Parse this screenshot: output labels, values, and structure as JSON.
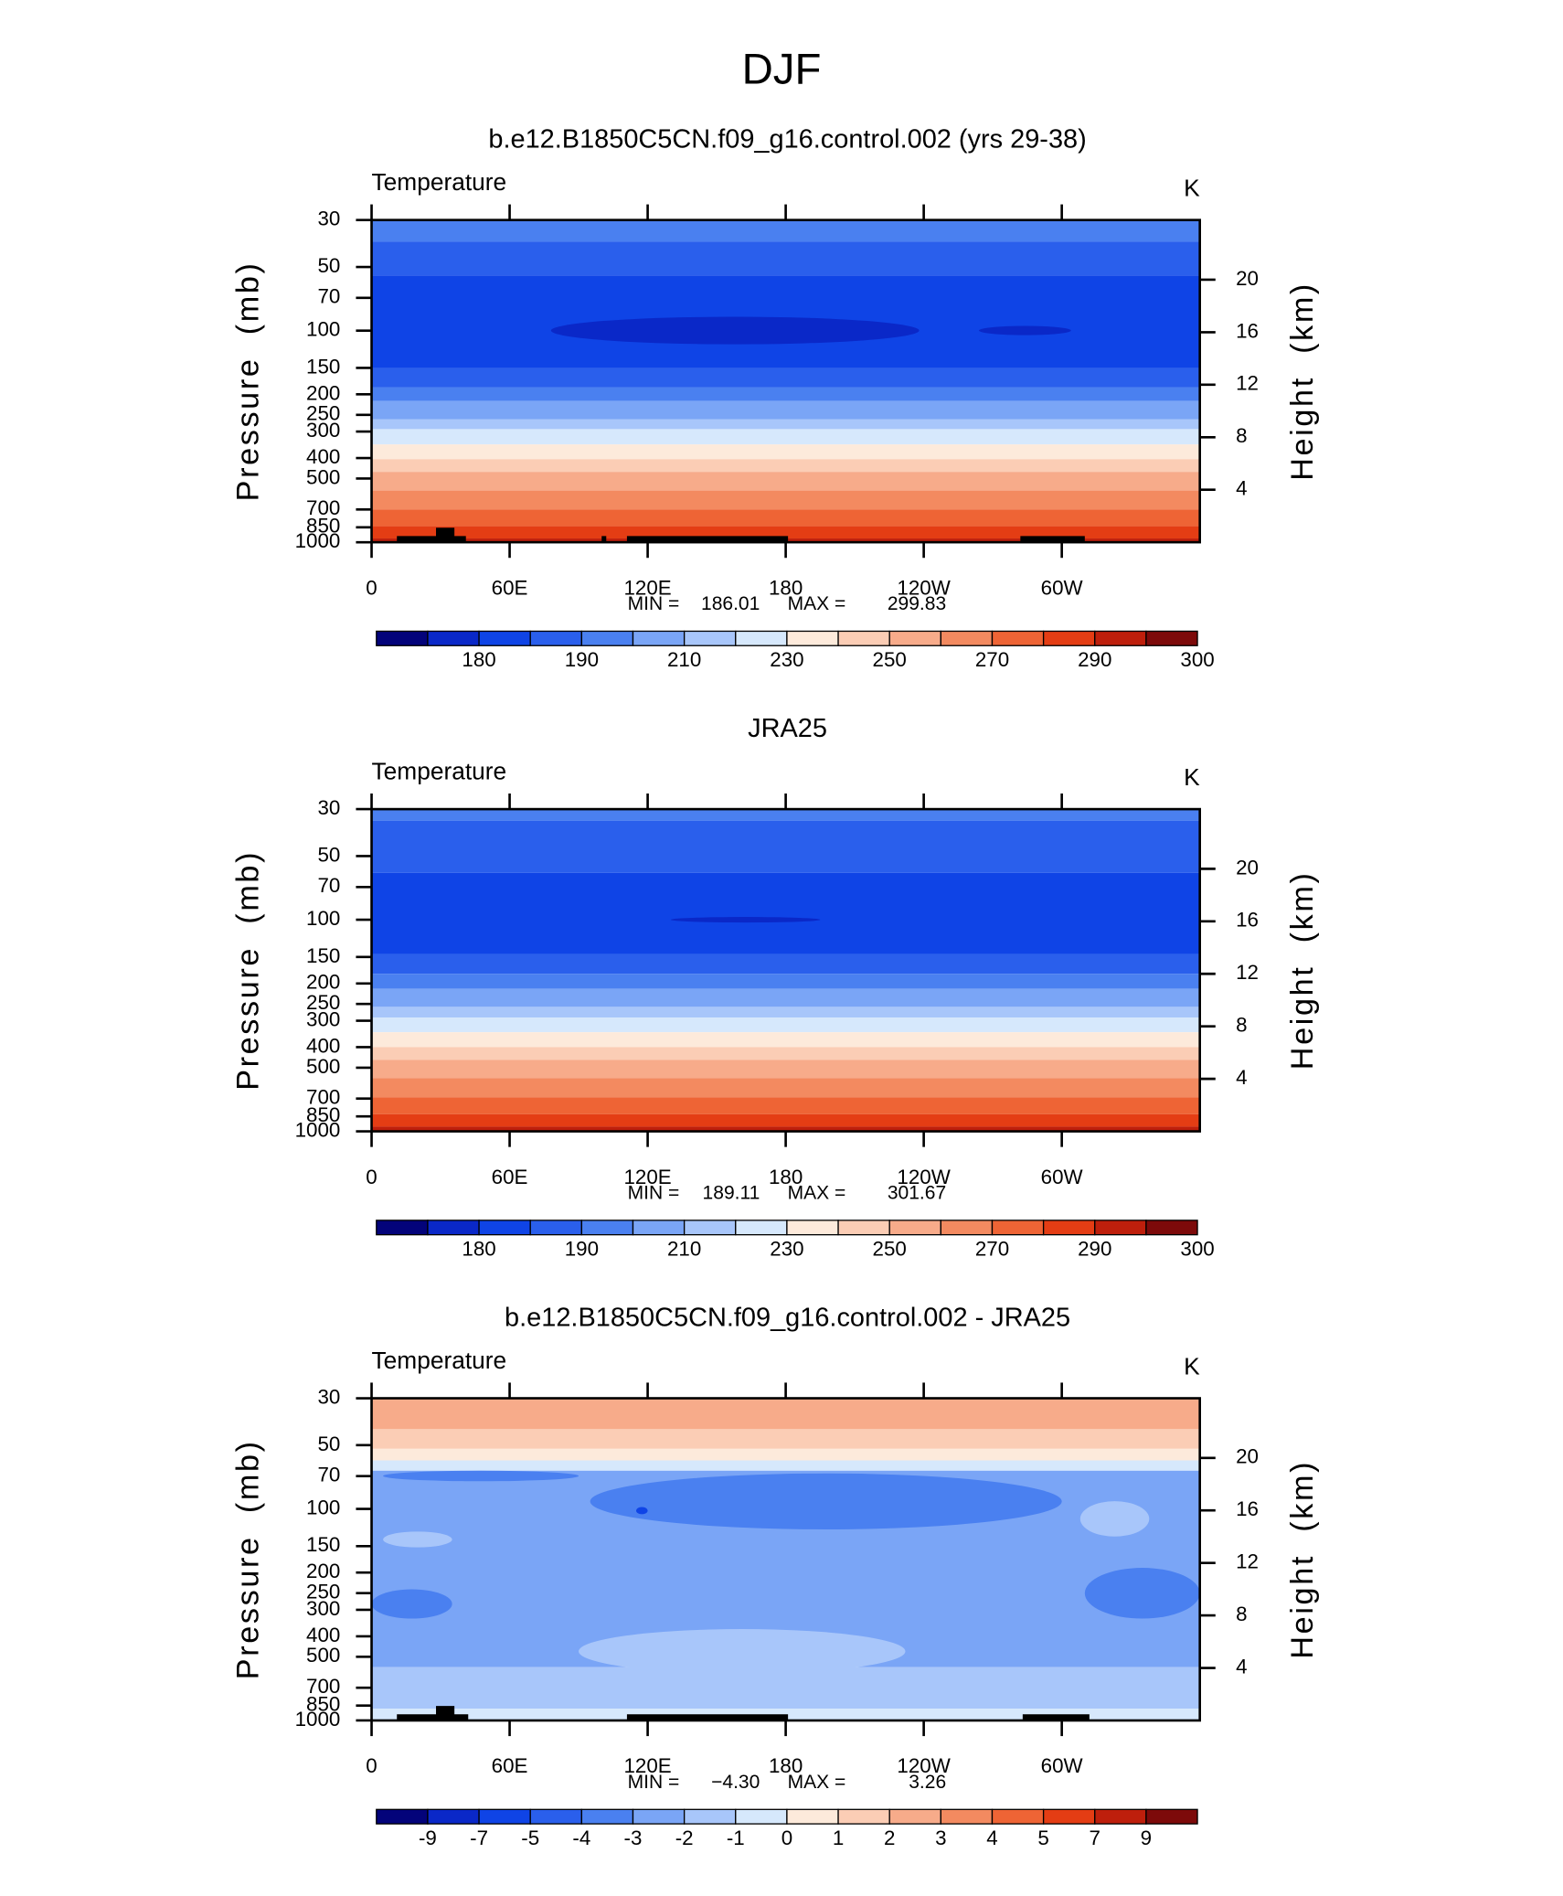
{
  "title": "DJF",
  "chart_data": [
    {
      "type": "contour",
      "title": "b.e12.B1850C5CN.f09_g16.control.002 (yrs 29-38)",
      "left_label": "Temperature",
      "right_label": "K",
      "ylabel": "Pressure  (mb)",
      "y2label": "Height  (km)",
      "xlim": [
        0,
        360
      ],
      "xticks": [
        0,
        {
          "value": 60,
          "label": "60E"
        },
        {
          "value": 120,
          "label": "120E"
        },
        {
          "value": 180,
          "label": "180"
        },
        {
          "value": 240,
          "label": "120W"
        },
        {
          "value": 300,
          "label": "60W"
        }
      ],
      "ylim": [
        1000,
        30
      ],
      "ylog": true,
      "yticks": [
        30,
        50,
        70,
        100,
        150,
        200,
        250,
        300,
        400,
        500,
        700,
        850,
        1000
      ],
      "y2ticks": [
        20,
        16,
        12,
        8,
        4
      ],
      "min_text": "MIN =",
      "min": 186.01,
      "max_text": "MAX =",
      "max": 299.83,
      "colorbar": {
        "colors": [
          "#03037a",
          "#0a28c8",
          "#0f44e6",
          "#2a5fec",
          "#4a80f0",
          "#7aa5f6",
          "#a8c6fa",
          "#d6e8fc",
          "#fdeadb",
          "#fbcdb5",
          "#f7ab8a",
          "#f38a60",
          "#ee6435",
          "#e43d14",
          "#be1f0c",
          "#7d0a0a"
        ],
        "levels": [
          null,
          180,
          null,
          190,
          null,
          210,
          null,
          230,
          null,
          250,
          null,
          270,
          null,
          290,
          null,
          300
        ]
      },
      "bands": [
        {
          "from": 30,
          "to": 38,
          "level": 4
        },
        {
          "from": 38,
          "to": 55,
          "level": 3
        },
        {
          "from": 55,
          "to": 150,
          "level": 2
        },
        {
          "from": 150,
          "to": 185,
          "level": 3
        },
        {
          "from": 185,
          "to": 215,
          "level": 4
        },
        {
          "from": 215,
          "to": 262,
          "level": 5
        },
        {
          "from": 262,
          "to": 292,
          "level": 6
        },
        {
          "from": 292,
          "to": 345,
          "level": 7
        },
        {
          "from": 345,
          "to": 405,
          "level": 8
        },
        {
          "from": 405,
          "to": 465,
          "level": 9
        },
        {
          "from": 465,
          "to": 570,
          "level": 10
        },
        {
          "from": 570,
          "to": 700,
          "level": 11
        },
        {
          "from": 700,
          "to": 840,
          "level": 12
        },
        {
          "from": 840,
          "to": 960,
          "level": 13
        },
        {
          "from": 960,
          "to": 1000,
          "level": 14
        }
      ],
      "blobs": [
        {
          "lon": [
            78,
            238
          ],
          "p": [
            86,
            116
          ],
          "level": 1
        },
        {
          "lon": [
            264,
            304
          ],
          "p": [
            95,
            105
          ],
          "level": 1
        }
      ],
      "land": [
        {
          "lon": [
            11,
            41
          ],
          "top": 935
        },
        {
          "lon": [
            28,
            36
          ],
          "top": 854
        },
        {
          "lon": [
            100,
            102
          ],
          "top": 935
        },
        {
          "lon": [
            111,
            181
          ],
          "top": 935
        },
        {
          "lon": [
            282,
            310
          ],
          "top": 935
        }
      ]
    },
    {
      "type": "contour",
      "title": "JRA25",
      "left_label": "Temperature",
      "right_label": "K",
      "ylabel": "Pressure  (mb)",
      "y2label": "Height  (km)",
      "xlim": [
        0,
        360
      ],
      "xticks": [
        0,
        {
          "value": 60,
          "label": "60E"
        },
        {
          "value": 120,
          "label": "120E"
        },
        {
          "value": 180,
          "label": "180"
        },
        {
          "value": 240,
          "label": "120W"
        },
        {
          "value": 300,
          "label": "60W"
        }
      ],
      "ylim": [
        1000,
        30
      ],
      "ylog": true,
      "yticks": [
        30,
        50,
        70,
        100,
        150,
        200,
        250,
        300,
        400,
        500,
        700,
        850,
        1000
      ],
      "y2ticks": [
        20,
        16,
        12,
        8,
        4
      ],
      "min_text": "MIN =",
      "min": 189.11,
      "max_text": "MAX =",
      "max": 301.67,
      "colorbar": {
        "colors": [
          "#03037a",
          "#0a28c8",
          "#0f44e6",
          "#2a5fec",
          "#4a80f0",
          "#7aa5f6",
          "#a8c6fa",
          "#d6e8fc",
          "#fdeadb",
          "#fbcdb5",
          "#f7ab8a",
          "#f38a60",
          "#ee6435",
          "#e43d14",
          "#be1f0c",
          "#7d0a0a"
        ],
        "levels": [
          null,
          180,
          null,
          190,
          null,
          210,
          null,
          230,
          null,
          250,
          null,
          270,
          null,
          290,
          null,
          300
        ]
      },
      "bands": [
        {
          "from": 30,
          "to": 34,
          "level": 4
        },
        {
          "from": 34,
          "to": 60,
          "level": 3
        },
        {
          "from": 60,
          "to": 145,
          "level": 2
        },
        {
          "from": 145,
          "to": 180,
          "level": 3
        },
        {
          "from": 180,
          "to": 212,
          "level": 4
        },
        {
          "from": 212,
          "to": 258,
          "level": 5
        },
        {
          "from": 258,
          "to": 290,
          "level": 6
        },
        {
          "from": 290,
          "to": 340,
          "level": 7
        },
        {
          "from": 340,
          "to": 400,
          "level": 8
        },
        {
          "from": 400,
          "to": 460,
          "level": 9
        },
        {
          "from": 460,
          "to": 560,
          "level": 10
        },
        {
          "from": 560,
          "to": 690,
          "level": 11
        },
        {
          "from": 690,
          "to": 830,
          "level": 12
        },
        {
          "from": 830,
          "to": 950,
          "level": 13
        },
        {
          "from": 950,
          "to": 1000,
          "level": 14
        }
      ],
      "blobs": [
        {
          "lon": [
            130,
            195
          ],
          "p": [
            97,
            103
          ],
          "level": 1
        }
      ],
      "land": []
    },
    {
      "type": "contour",
      "title": "b.e12.B1850C5CN.f09_g16.control.002 - JRA25",
      "left_label": "Temperature",
      "right_label": "K",
      "ylabel": "Pressure  (mb)",
      "y2label": "Height  (km)",
      "xlim": [
        0,
        360
      ],
      "xticks": [
        0,
        {
          "value": 60,
          "label": "60E"
        },
        {
          "value": 120,
          "label": "120E"
        },
        {
          "value": 180,
          "label": "180"
        },
        {
          "value": 240,
          "label": "120W"
        },
        {
          "value": 300,
          "label": "60W"
        }
      ],
      "ylim": [
        1000,
        30
      ],
      "ylog": true,
      "yticks": [
        30,
        50,
        70,
        100,
        150,
        200,
        250,
        300,
        400,
        500,
        700,
        850,
        1000
      ],
      "y2ticks": [
        20,
        16,
        12,
        8,
        4
      ],
      "min_text": "MIN =",
      "min": {
        "value": -4.3,
        "label": "−4.30"
      },
      "max_text": "MAX =",
      "max": 3.26,
      "colorbar": {
        "colors": [
          "#03037a",
          "#0a28c8",
          "#0f44e6",
          "#2a5fec",
          "#4a80f0",
          "#7aa5f6",
          "#a8c6fa",
          "#d6e8fc",
          "#fdeadb",
          "#fbcdb5",
          "#f7ab8a",
          "#f38a60",
          "#ee6435",
          "#e43d14",
          "#be1f0c",
          "#7d0a0a"
        ],
        "levels": [
          -9,
          -7,
          -5,
          -4,
          -3,
          -2,
          -1,
          0,
          1,
          2,
          3,
          4,
          5,
          7,
          9
        ]
      },
      "bands": [
        {
          "from": 30,
          "to": 42,
          "level": 10
        },
        {
          "from": 42,
          "to": 52,
          "level": 9
        },
        {
          "from": 52,
          "to": 59,
          "level": 8
        },
        {
          "from": 59,
          "to": 66,
          "level": 7
        },
        {
          "from": 66,
          "to": 560,
          "level": 5
        },
        {
          "from": 560,
          "to": 880,
          "level": 6
        },
        {
          "from": 880,
          "to": 1000,
          "level": 7
        }
      ],
      "blobs": [
        {
          "lon": [
            5,
            90
          ],
          "p": [
            66,
            74
          ],
          "level": 4
        },
        {
          "lon": [
            95,
            300
          ],
          "p": [
            68,
            125
          ],
          "level": 4
        },
        {
          "lon": [
            0,
            35
          ],
          "p": [
            240,
            330
          ],
          "level": 4
        },
        {
          "lon": [
            310,
            360
          ],
          "p": [
            190,
            330
          ],
          "level": 4
        },
        {
          "lon": [
            5,
            35
          ],
          "p": [
            128,
            152
          ],
          "level": 6
        },
        {
          "lon": [
            308,
            338
          ],
          "p": [
            92,
            135
          ],
          "level": 6
        },
        {
          "lon": [
            90,
            232
          ],
          "p": [
            370,
            600
          ],
          "level": 6
        },
        {
          "lon": [
            115,
            120
          ],
          "p": [
            98,
            106
          ],
          "level": 2
        }
      ],
      "land": [
        {
          "lon": [
            11,
            42
          ],
          "top": 935
        },
        {
          "lon": [
            28,
            36
          ],
          "top": 854
        },
        {
          "lon": [
            111,
            181
          ],
          "top": 935
        },
        {
          "lon": [
            283,
            312
          ],
          "top": 935
        }
      ]
    }
  ]
}
